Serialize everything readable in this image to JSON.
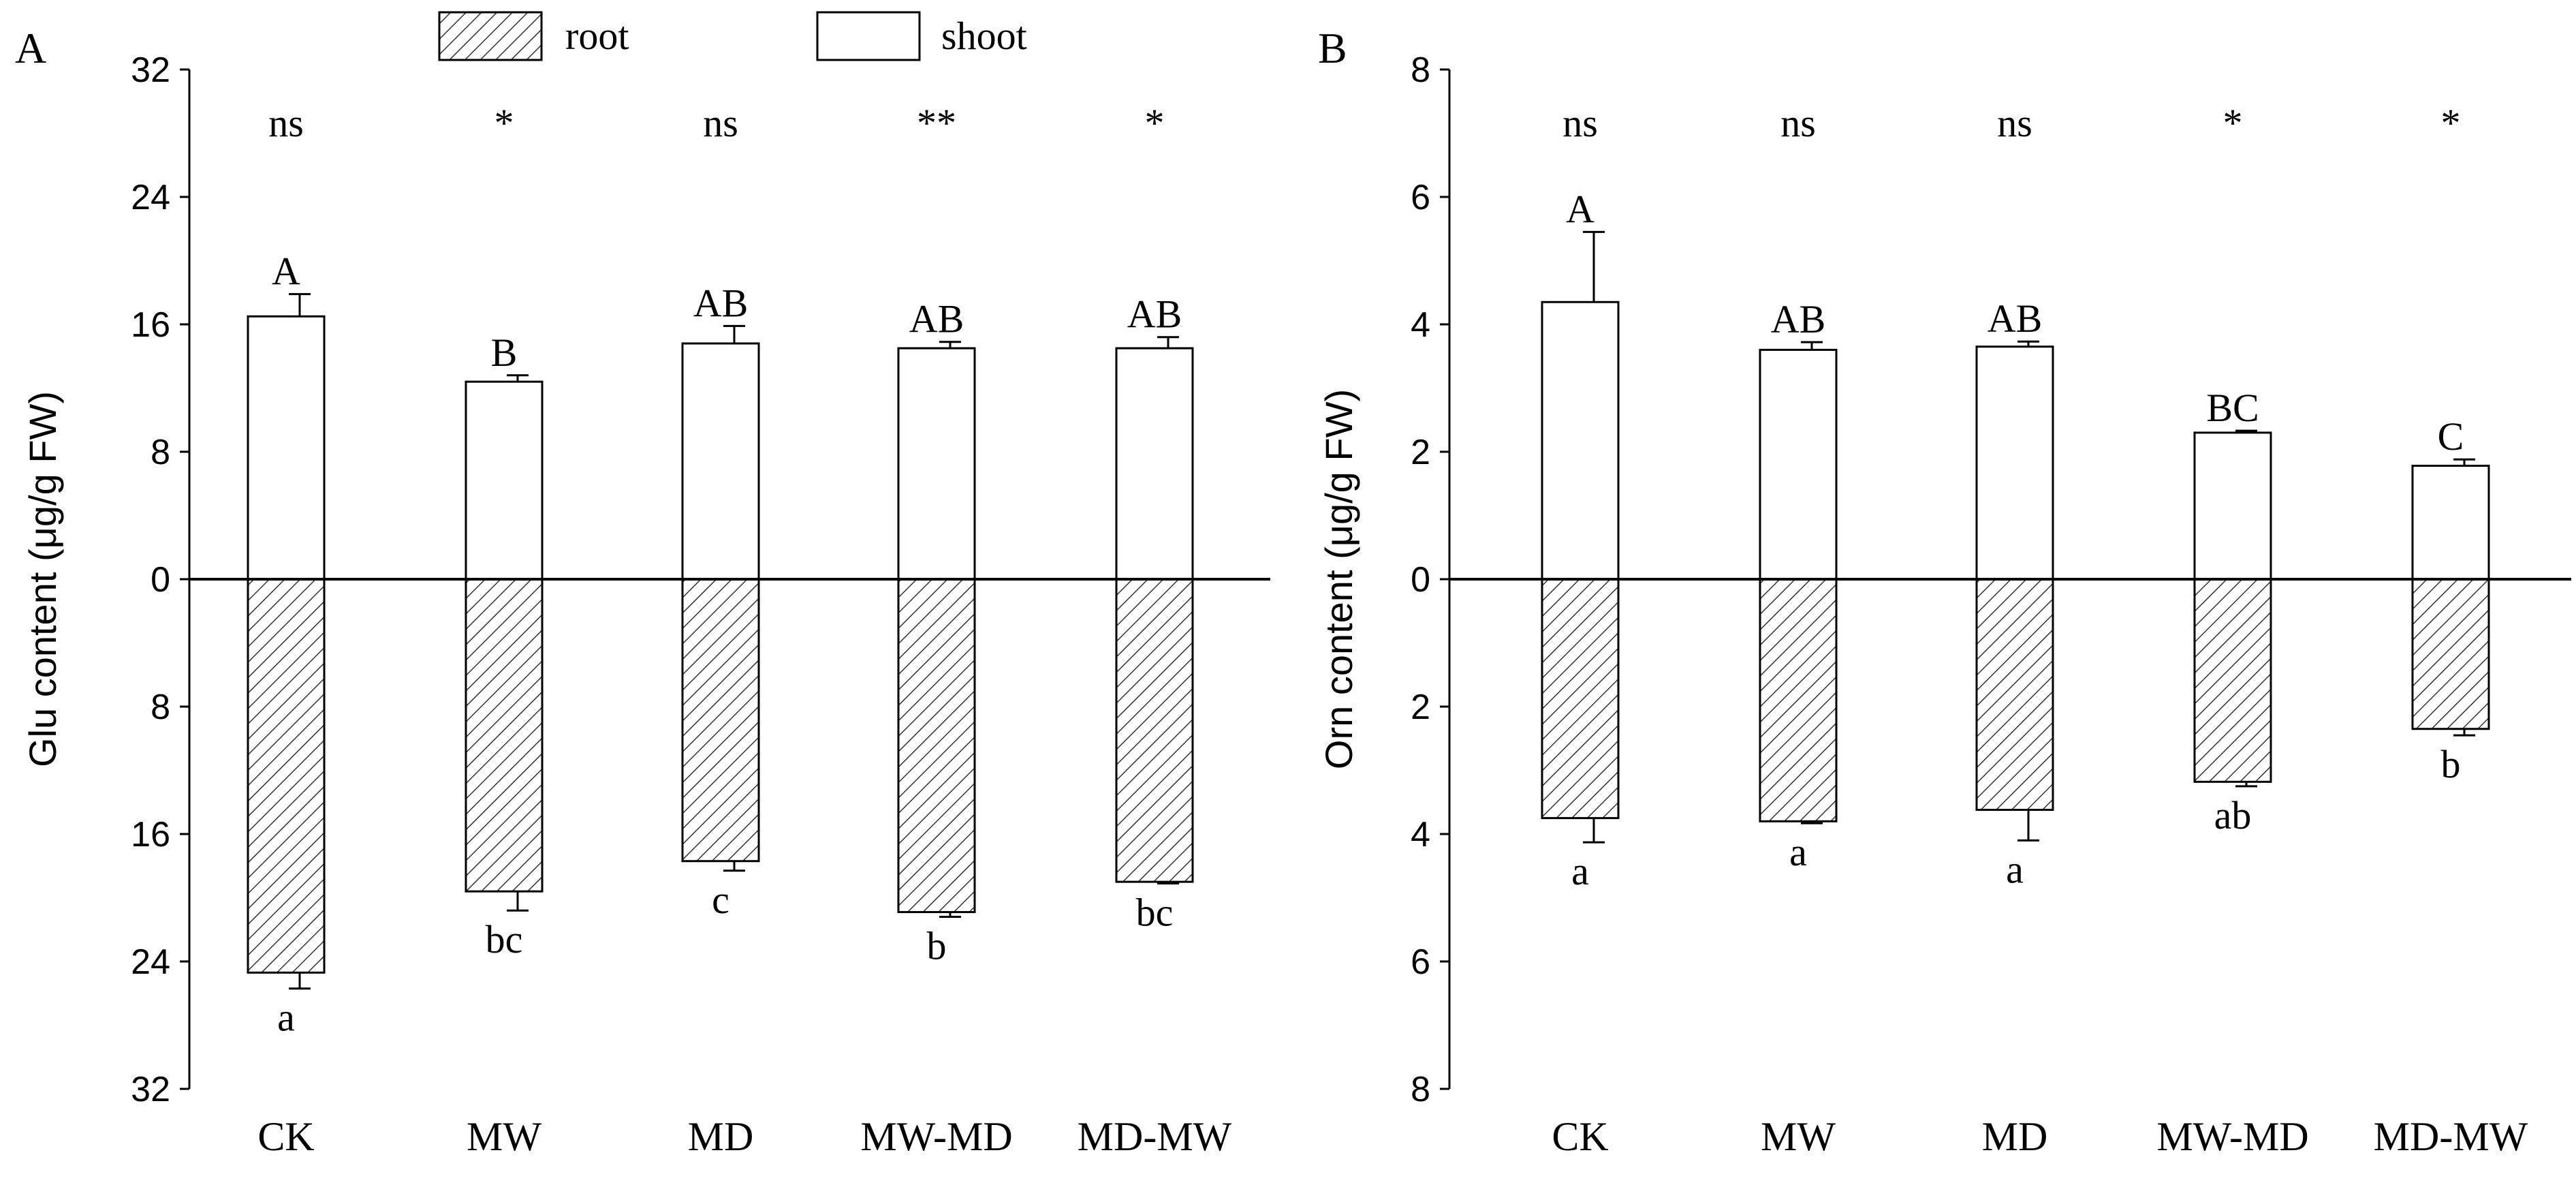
{
  "legend": {
    "root_label": "root",
    "shoot_label": "shoot"
  },
  "chart_data": [
    {
      "panel_label": "A",
      "type": "bar",
      "ylabel": "Glu content (μg/g  FW)",
      "categories": [
        "CK",
        "MW",
        "MD",
        "MW-MD",
        "MD-MW"
      ],
      "y_tick_labels": [
        "32",
        "24",
        "16",
        "8",
        "0",
        "8",
        "16",
        "24",
        "32"
      ],
      "shoot": {
        "values": [
          16.5,
          12.4,
          14.8,
          14.5,
          14.5
        ],
        "errors": [
          1.4,
          0.4,
          1.1,
          0.4,
          0.7
        ],
        "letters": [
          "A",
          "B",
          "AB",
          "AB",
          "AB"
        ]
      },
      "root": {
        "values": [
          24.7,
          19.6,
          17.7,
          20.9,
          19.0
        ],
        "errors": [
          1.0,
          1.2,
          0.6,
          0.3,
          0.1
        ],
        "letters": [
          "a",
          "bc",
          "c",
          "b",
          "bc"
        ]
      },
      "significance": [
        "ns",
        "*",
        "ns",
        "**",
        "*"
      ]
    },
    {
      "panel_label": "B",
      "type": "bar",
      "ylabel": "Orn content (μg/g  FW)",
      "categories": [
        "CK",
        "MW",
        "MD",
        "MW-MD",
        "MD-MW"
      ],
      "y_tick_labels": [
        "8",
        "6",
        "4",
        "2",
        "0",
        "2",
        "4",
        "6",
        "8"
      ],
      "shoot": {
        "values": [
          4.35,
          3.6,
          3.65,
          2.3,
          1.78
        ],
        "errors": [
          1.1,
          0.12,
          0.08,
          0.03,
          0.1
        ],
        "letters": [
          "A",
          "AB",
          "AB",
          "BC",
          "C"
        ]
      },
      "root": {
        "values": [
          3.75,
          3.8,
          3.62,
          3.18,
          2.35
        ],
        "errors": [
          0.38,
          0.03,
          0.48,
          0.07,
          0.1
        ],
        "letters": [
          "a",
          "a",
          "a",
          "ab",
          "b"
        ]
      },
      "significance": [
        "ns",
        "ns",
        "ns",
        "*",
        "*"
      ]
    }
  ]
}
